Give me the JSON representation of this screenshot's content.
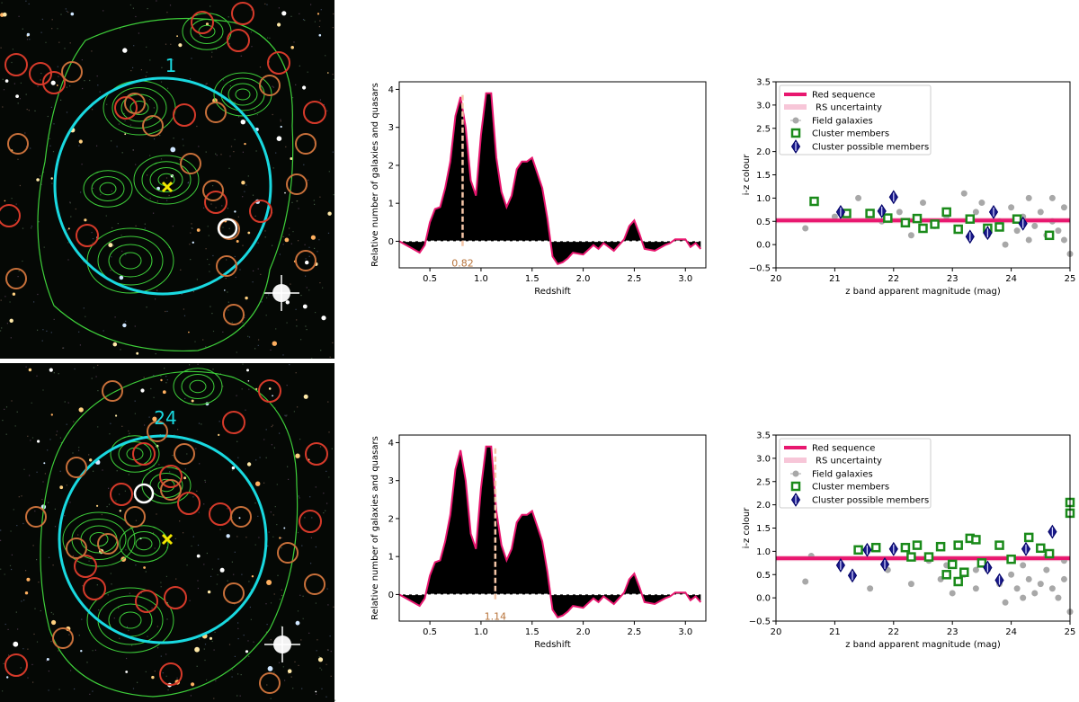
{
  "images": [
    {
      "cluster_label": "1"
    },
    {
      "cluster_label": "24"
    }
  ],
  "chart_data": [
    {
      "type": "area",
      "xlabel": "Redshift",
      "ylabel": "Relative number of galaxies and quasars",
      "xlim": [
        0.2,
        3.2
      ],
      "ylim": [
        -0.7,
        4.2
      ],
      "xticks": [
        0.5,
        1.0,
        1.5,
        2.0,
        2.5,
        3.0
      ],
      "xtick_labels": [
        "0.5",
        "1.0",
        "1.5",
        "2.0",
        "2.5",
        "3.0"
      ],
      "yticks": [
        0,
        1,
        2,
        3,
        4
      ],
      "ytick_labels": [
        "0",
        "1",
        "2",
        "3",
        "4"
      ],
      "peak_z": 0.82,
      "peak_label": "0.82",
      "x": [
        0.2,
        0.3,
        0.4,
        0.45,
        0.5,
        0.55,
        0.6,
        0.65,
        0.7,
        0.75,
        0.8,
        0.85,
        0.9,
        0.95,
        1.0,
        1.05,
        1.1,
        1.15,
        1.2,
        1.25,
        1.3,
        1.35,
        1.4,
        1.45,
        1.5,
        1.55,
        1.6,
        1.65,
        1.7,
        1.75,
        1.8,
        1.85,
        1.9,
        2.0,
        2.1,
        2.15,
        2.2,
        2.3,
        2.4,
        2.45,
        2.5,
        2.55,
        2.6,
        2.7,
        2.8,
        2.85,
        2.9,
        3.0,
        3.05,
        3.1,
        3.15
      ],
      "values": [
        0.0,
        -0.15,
        -0.3,
        -0.1,
        0.5,
        0.85,
        0.9,
        1.4,
        2.1,
        3.3,
        3.8,
        3.0,
        1.6,
        1.2,
        2.8,
        3.9,
        3.9,
        2.2,
        1.3,
        0.9,
        1.2,
        1.9,
        2.1,
        2.1,
        2.2,
        1.8,
        1.4,
        0.6,
        -0.4,
        -0.6,
        -0.55,
        -0.45,
        -0.3,
        -0.35,
        -0.1,
        -0.2,
        -0.05,
        -0.25,
        0.05,
        0.4,
        0.55,
        0.2,
        -0.2,
        -0.25,
        -0.1,
        -0.05,
        0.05,
        0.05,
        -0.15,
        -0.05,
        -0.2
      ]
    },
    {
      "type": "scatter",
      "xlabel": "z band apparent magnitude (mag)",
      "ylabel": "i-z colour",
      "xlim": [
        20,
        25
      ],
      "ylim": [
        -0.5,
        3.5
      ],
      "xticks": [
        20,
        21,
        22,
        23,
        24,
        25
      ],
      "xtick_labels": [
        "20",
        "21",
        "22",
        "23",
        "24",
        "25"
      ],
      "yticks": [
        -0.5,
        0.0,
        0.5,
        1.0,
        1.5,
        2.0,
        2.5,
        3.0,
        3.5
      ],
      "ytick_labels": [
        "−0.5",
        "0.0",
        "0.5",
        "1.0",
        "1.5",
        "2.0",
        "2.5",
        "3.0",
        "3.5"
      ],
      "red_sequence": 0.52,
      "rs_uncertainty": 0.06,
      "legend": [
        "Red sequence",
        "RS uncertainty",
        "Field galaxies",
        "Cluster members",
        "Cluster possible members"
      ],
      "legend_position": "top-left",
      "series": [
        {
          "name": "Field galaxies",
          "points": [
            [
              20.5,
              0.35
            ],
            [
              21.0,
              0.6
            ],
            [
              21.4,
              1.0
            ],
            [
              21.8,
              0.5
            ],
            [
              22.1,
              0.7
            ],
            [
              22.3,
              0.2
            ],
            [
              22.5,
              0.9
            ],
            [
              22.7,
              0.4
            ],
            [
              22.9,
              0.6
            ],
            [
              23.1,
              0.3
            ],
            [
              23.2,
              1.1
            ],
            [
              23.4,
              0.7
            ],
            [
              23.6,
              0.2
            ],
            [
              23.8,
              0.5
            ],
            [
              24.0,
              0.8
            ],
            [
              24.1,
              0.3
            ],
            [
              24.2,
              0.6
            ],
            [
              24.3,
              0.1
            ],
            [
              24.4,
              0.4
            ],
            [
              24.5,
              0.7
            ],
            [
              24.6,
              0.2
            ],
            [
              24.7,
              0.5
            ],
            [
              24.8,
              0.3
            ],
            [
              24.9,
              0.1
            ],
            [
              25.0,
              -0.2
            ],
            [
              24.9,
              0.8
            ],
            [
              24.7,
              1.0
            ],
            [
              24.3,
              1.0
            ],
            [
              23.9,
              0.0
            ],
            [
              23.5,
              0.9
            ]
          ]
        },
        {
          "name": "Cluster members",
          "points": [
            [
              20.65,
              0.93
            ],
            [
              21.2,
              0.67
            ],
            [
              21.6,
              0.67
            ],
            [
              21.9,
              0.57
            ],
            [
              22.2,
              0.47
            ],
            [
              22.4,
              0.56
            ],
            [
              22.5,
              0.35
            ],
            [
              22.7,
              0.44
            ],
            [
              22.9,
              0.7
            ],
            [
              23.1,
              0.33
            ],
            [
              23.3,
              0.55
            ],
            [
              23.6,
              0.35
            ],
            [
              23.8,
              0.38
            ],
            [
              24.1,
              0.55
            ],
            [
              24.65,
              0.2
            ]
          ]
        },
        {
          "name": "Cluster possible members",
          "points": [
            [
              21.1,
              0.7
            ],
            [
              21.8,
              0.72
            ],
            [
              22.0,
              1.02
            ],
            [
              23.3,
              0.17
            ],
            [
              23.6,
              0.25
            ],
            [
              23.7,
              0.7
            ],
            [
              24.2,
              0.45
            ]
          ]
        }
      ]
    },
    {
      "type": "area",
      "xlabel": "Redshift",
      "ylabel": "Relative number of galaxies and quasars",
      "xlim": [
        0.2,
        3.2
      ],
      "ylim": [
        -0.7,
        4.2
      ],
      "xticks": [
        0.5,
        1.0,
        1.5,
        2.0,
        2.5,
        3.0
      ],
      "xtick_labels": [
        "0.5",
        "1.0",
        "1.5",
        "2.0",
        "2.5",
        "3.0"
      ],
      "yticks": [
        0,
        1,
        2,
        3,
        4
      ],
      "ytick_labels": [
        "0",
        "1",
        "2",
        "3",
        "4"
      ],
      "peak_z": 1.14,
      "peak_label": "1.14",
      "x": [
        0.2,
        0.3,
        0.4,
        0.45,
        0.5,
        0.55,
        0.6,
        0.65,
        0.7,
        0.75,
        0.8,
        0.85,
        0.9,
        0.95,
        1.0,
        1.05,
        1.1,
        1.15,
        1.2,
        1.25,
        1.3,
        1.35,
        1.4,
        1.45,
        1.5,
        1.55,
        1.6,
        1.65,
        1.7,
        1.75,
        1.8,
        1.85,
        1.9,
        2.0,
        2.1,
        2.15,
        2.2,
        2.3,
        2.4,
        2.45,
        2.5,
        2.55,
        2.6,
        2.7,
        2.8,
        2.85,
        2.9,
        3.0,
        3.05,
        3.1,
        3.15
      ],
      "values": [
        0.0,
        -0.15,
        -0.3,
        -0.1,
        0.5,
        0.85,
        0.9,
        1.4,
        2.1,
        3.3,
        3.8,
        3.0,
        1.6,
        1.2,
        2.8,
        3.9,
        3.9,
        2.2,
        1.3,
        0.9,
        1.2,
        1.9,
        2.1,
        2.1,
        2.2,
        1.8,
        1.4,
        0.6,
        -0.4,
        -0.6,
        -0.55,
        -0.45,
        -0.3,
        -0.35,
        -0.1,
        -0.2,
        -0.05,
        -0.25,
        0.05,
        0.4,
        0.55,
        0.2,
        -0.2,
        -0.25,
        -0.1,
        -0.05,
        0.05,
        0.05,
        -0.15,
        -0.05,
        -0.2
      ]
    },
    {
      "type": "scatter",
      "xlabel": "z band apparent magnitude (mag)",
      "ylabel": "i-z colour",
      "xlim": [
        20,
        25
      ],
      "ylim": [
        -0.5,
        3.5
      ],
      "xticks": [
        20,
        21,
        22,
        23,
        24,
        25
      ],
      "xtick_labels": [
        "20",
        "21",
        "22",
        "23",
        "24",
        "25"
      ],
      "yticks": [
        -0.5,
        0.0,
        0.5,
        1.0,
        1.5,
        2.0,
        2.5,
        3.0,
        3.5
      ],
      "ytick_labels": [
        "−0.5",
        "0.0",
        "0.5",
        "1.0",
        "1.5",
        "2.0",
        "2.5",
        "3.0",
        "3.5"
      ],
      "red_sequence": 0.85,
      "rs_uncertainty": 0.06,
      "legend": [
        "Red sequence",
        "RS uncertainty",
        "Field galaxies",
        "Cluster members",
        "Cluster possible members"
      ],
      "legend_position": "top-left",
      "series": [
        {
          "name": "Field galaxies",
          "points": [
            [
              20.6,
              0.9
            ],
            [
              20.5,
              0.35
            ],
            [
              21.3,
              0.5
            ],
            [
              21.6,
              0.2
            ],
            [
              21.9,
              0.6
            ],
            [
              22.3,
              0.3
            ],
            [
              22.6,
              0.8
            ],
            [
              22.8,
              0.4
            ],
            [
              23.0,
              0.1
            ],
            [
              23.2,
              0.5
            ],
            [
              23.4,
              0.2
            ],
            [
              23.6,
              0.6
            ],
            [
              23.8,
              0.3
            ],
            [
              24.0,
              0.5
            ],
            [
              24.1,
              0.2
            ],
            [
              24.2,
              0.7
            ],
            [
              24.3,
              0.4
            ],
            [
              24.4,
              0.1
            ],
            [
              24.5,
              0.3
            ],
            [
              24.6,
              0.6
            ],
            [
              24.7,
              0.2
            ],
            [
              24.8,
              0.0
            ],
            [
              24.9,
              0.4
            ],
            [
              25.0,
              -0.3
            ],
            [
              24.9,
              0.8
            ],
            [
              24.6,
              0.9
            ],
            [
              24.2,
              0.0
            ],
            [
              23.9,
              -0.1
            ],
            [
              23.4,
              0.6
            ],
            [
              22.9,
              0.7
            ]
          ]
        },
        {
          "name": "Cluster members",
          "points": [
            [
              21.4,
              1.03
            ],
            [
              21.7,
              1.08
            ],
            [
              22.2,
              1.08
            ],
            [
              22.3,
              0.88
            ],
            [
              22.4,
              1.13
            ],
            [
              22.6,
              0.88
            ],
            [
              22.8,
              1.1
            ],
            [
              23.0,
              0.72
            ],
            [
              23.1,
              1.13
            ],
            [
              23.3,
              1.28
            ],
            [
              23.4,
              1.25
            ],
            [
              23.5,
              0.75
            ],
            [
              23.8,
              1.13
            ],
            [
              24.0,
              0.83
            ],
            [
              24.3,
              1.3
            ],
            [
              24.5,
              1.07
            ],
            [
              24.65,
              0.95
            ],
            [
              25.0,
              1.82
            ],
            [
              25.0,
              2.05
            ],
            [
              23.2,
              0.55
            ],
            [
              23.1,
              0.35
            ],
            [
              22.9,
              0.5
            ]
          ]
        },
        {
          "name": "Cluster possible members",
          "points": [
            [
              21.1,
              0.7
            ],
            [
              21.3,
              0.48
            ],
            [
              21.55,
              1.03
            ],
            [
              21.85,
              0.72
            ],
            [
              22.0,
              1.05
            ],
            [
              23.6,
              0.65
            ],
            [
              23.8,
              0.38
            ],
            [
              24.25,
              1.05
            ],
            [
              24.7,
              1.42
            ]
          ]
        }
      ]
    }
  ]
}
